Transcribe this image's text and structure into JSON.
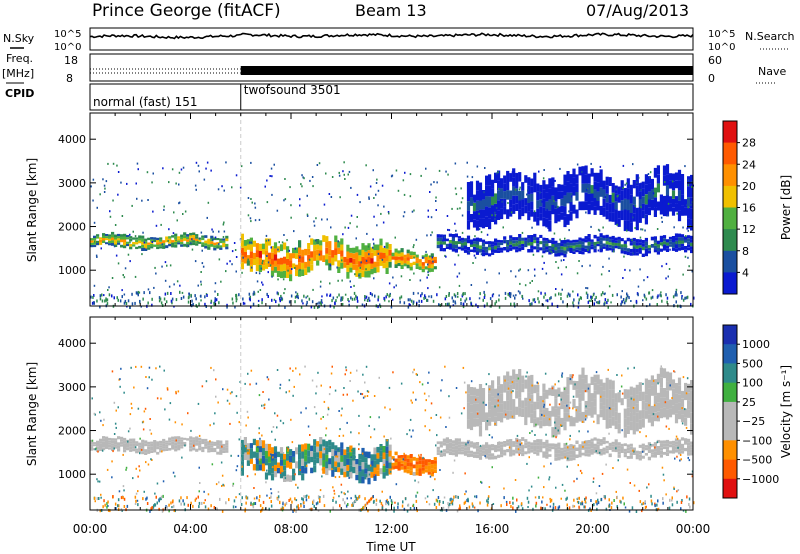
{
  "header": {
    "station": "Prince George (fitACF)",
    "beam": "Beam 13",
    "date": "07/Aug/2013"
  },
  "left_labels": {
    "nsky": "N.Sky",
    "freq_line1": "Freq.",
    "freq_line2": "[MHz]",
    "cpid": "CPID"
  },
  "right_labels": {
    "nsearch": "N.Search",
    "nave": "Nave"
  },
  "cpid_segments": [
    {
      "label": "normal (fast) 151",
      "start_hour": 0,
      "end_hour": 6
    },
    {
      "label": "twofsound 3501",
      "start_hour": 6,
      "end_hour": 24
    }
  ],
  "chart_data": [
    {
      "type": "line",
      "name": "noise",
      "y_left_ticks": [
        "10^5",
        "10^0"
      ],
      "y_right_ticks": [
        "10^5",
        "10^0"
      ],
      "series": [
        {
          "name": "N.Sky",
          "style": "solid",
          "level": 0.55
        },
        {
          "name": "N.Search",
          "style": "dotted"
        }
      ]
    },
    {
      "type": "line",
      "name": "frequency",
      "y_left_ticks": [
        "18",
        "8"
      ],
      "y_right_ticks": [
        "60",
        "0"
      ],
      "series": [
        {
          "name": "Freq",
          "style": "dotted"
        },
        {
          "name": "Nave",
          "style": "dotted"
        }
      ]
    },
    {
      "type": "heatmap",
      "name": "power",
      "ylabel": "Slant Range [km]",
      "yticks": [
        1000,
        2000,
        3000,
        4000
      ],
      "ylim": [
        180,
        4600
      ],
      "xlim_hours": [
        0,
        24
      ],
      "colorbar": {
        "label": "Power [dB]",
        "ticks": [
          "28",
          "24",
          "20",
          "16",
          "12",
          "8",
          "4"
        ],
        "colors": [
          "#e01010",
          "#ff5a00",
          "#ff9000",
          "#f0c000",
          "#50b040",
          "#2e8a4e",
          "#1a4fa0",
          "#0a1ad0"
        ]
      },
      "bands": [
        {
          "t0": 0.0,
          "t1": 5.5,
          "r0": 1480,
          "r1": 1840,
          "value": 20
        },
        {
          "t0": 6.0,
          "t1": 12.0,
          "r0": 850,
          "r1": 1750,
          "value": 26
        },
        {
          "t0": 12.0,
          "t1": 13.8,
          "r0": 1000,
          "r1": 1500,
          "value": 24
        },
        {
          "t0": 13.8,
          "t1": 24.0,
          "r0": 1350,
          "r1": 1800,
          "value": 10
        },
        {
          "t0": 15.0,
          "t1": 24.0,
          "r0": 2000,
          "r1": 3300,
          "value": 6
        }
      ]
    },
    {
      "type": "heatmap",
      "name": "velocity",
      "ylabel": "Slant Range [km]",
      "yticks": [
        1000,
        2000,
        3000,
        4000
      ],
      "ylim": [
        180,
        4600
      ],
      "xlim_hours": [
        0,
        24
      ],
      "xticks": [
        "00:00",
        "04:00",
        "08:00",
        "12:00",
        "16:00",
        "20:00",
        "00:00"
      ],
      "xlabel": "Time UT",
      "colorbar": {
        "label": "Velocity [m s⁻¹]",
        "ticks": [
          "1000",
          "500",
          "100",
          "25",
          "−25",
          "−100",
          "−500",
          "−1000"
        ],
        "colors": [
          "#1a2fb0",
          "#1f5fb0",
          "#2e8a8a",
          "#40b040",
          "#b8b8b8",
          "#b8b8b8",
          "#ff9000",
          "#ff5a00",
          "#e01010"
        ]
      },
      "bands": [
        {
          "t0": 0.0,
          "t1": 5.5,
          "r0": 1480,
          "r1": 1840,
          "value": 0
        },
        {
          "t0": 6.0,
          "t1": 12.0,
          "r0": 850,
          "r1": 1750,
          "value": 120
        },
        {
          "t0": 12.0,
          "t1": 13.8,
          "r0": 1000,
          "r1": 1500,
          "value": -300
        },
        {
          "t0": 13.8,
          "t1": 24.0,
          "r0": 1350,
          "r1": 1800,
          "value": 0
        },
        {
          "t0": 15.0,
          "t1": 24.0,
          "r0": 2000,
          "r1": 3300,
          "value": 0
        }
      ]
    }
  ]
}
